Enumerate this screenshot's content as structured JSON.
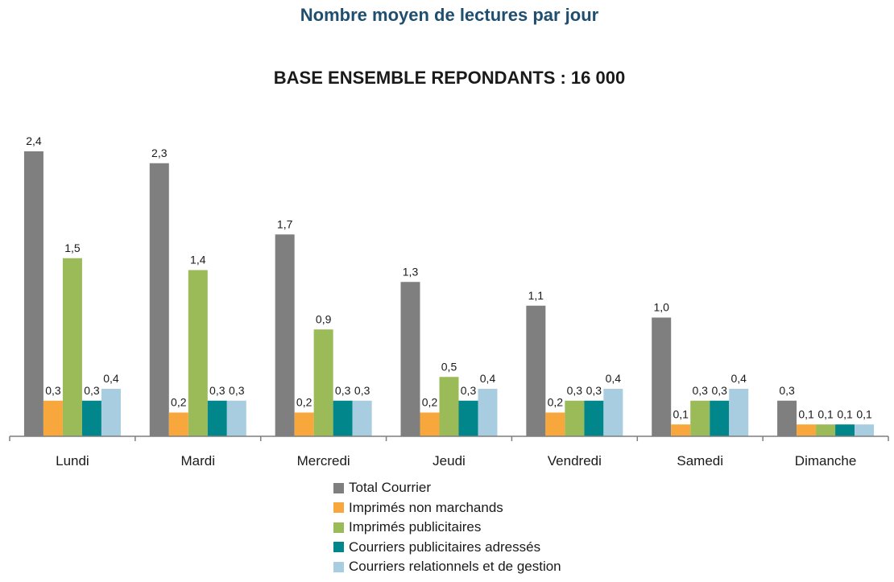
{
  "chart_data": {
    "type": "bar",
    "title": "Nombre moyen de lectures par jour",
    "subtitle": "BASE ENSEMBLE REPONDANTS : 16 000",
    "categories": [
      "Lundi",
      "Mardi",
      "Mercredi",
      "Jeudi",
      "Vendredi",
      "Samedi",
      "Dimanche"
    ],
    "series": [
      {
        "name": "Total Courrier",
        "color": "#7f7f7f",
        "values": [
          2.4,
          2.3,
          1.7,
          1.3,
          1.1,
          1.0,
          0.3
        ],
        "labels": [
          "2,4",
          "2,3",
          "1,7",
          "1,3",
          "1,1",
          "1,0",
          "0,3"
        ]
      },
      {
        "name": "Imprimés non marchands",
        "color": "#f8a73c",
        "values": [
          0.3,
          0.2,
          0.2,
          0.2,
          0.2,
          0.1,
          0.1
        ],
        "labels": [
          "0,3",
          "0,2",
          "0,2",
          "0,2",
          "0,2",
          "0,1",
          "0,1"
        ]
      },
      {
        "name": "Imprimés publicitaires",
        "color": "#9bbb59",
        "values": [
          1.5,
          1.4,
          0.9,
          0.5,
          0.3,
          0.3,
          0.1
        ],
        "labels": [
          "1,5",
          "1,4",
          "0,9",
          "0,5",
          "0,3",
          "0,3",
          "0,1"
        ]
      },
      {
        "name": "Courriers publicitaires adressés",
        "color": "#00868b",
        "values": [
          0.3,
          0.3,
          0.3,
          0.3,
          0.3,
          0.3,
          0.1
        ],
        "labels": [
          "0,3",
          "0,3",
          "0,3",
          "0,3",
          "0,3",
          "0,3",
          "0,1"
        ]
      },
      {
        "name": "Courriers relationnels et de gestion",
        "color": "#a9cde0",
        "values": [
          0.4,
          0.3,
          0.3,
          0.4,
          0.4,
          0.4,
          0.1
        ],
        "labels": [
          "0,4",
          "0,3",
          "0,3",
          "0,4",
          "0,4",
          "0,4",
          "0,1"
        ]
      }
    ],
    "ylim": [
      0,
      2.4
    ],
    "grid": false,
    "legend_position": "bottom"
  }
}
